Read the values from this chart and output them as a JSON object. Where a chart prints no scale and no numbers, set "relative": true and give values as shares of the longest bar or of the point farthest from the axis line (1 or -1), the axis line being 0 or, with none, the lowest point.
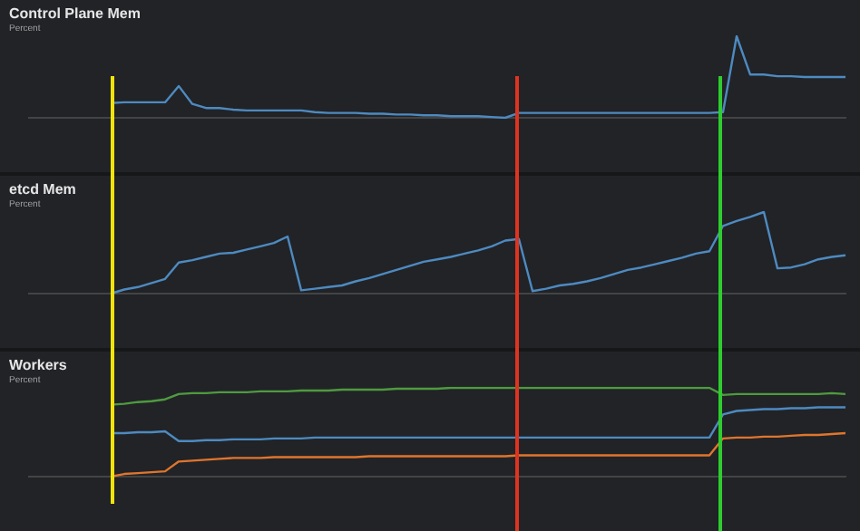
{
  "chart_data": [
    {
      "type": "line",
      "title": "Control Plane Mem",
      "ylabel": "Percent",
      "relative": true,
      "legend": false,
      "marker": "none",
      "line_style": "solid",
      "categories": [
        null,
        null,
        null,
        null,
        null,
        null,
        null,
        null,
        null,
        null,
        null,
        null,
        null,
        null,
        null,
        null,
        null,
        null,
        null,
        null,
        null,
        null,
        null,
        null,
        null,
        null,
        null,
        null,
        null,
        null,
        null,
        null,
        null,
        null,
        null,
        null,
        null,
        null,
        null,
        null,
        null,
        null,
        null,
        null,
        null,
        null,
        null,
        null,
        null,
        null,
        null,
        null,
        null,
        null,
        null,
        null,
        null,
        null,
        null,
        null,
        null
      ],
      "series": [
        {
          "color": "#4e8ac0",
          "values": [
            null,
            null,
            null,
            null,
            null,
            null,
            0.18,
            0.19,
            0.19,
            0.19,
            0.19,
            0.39,
            0.17,
            0.12,
            0.12,
            0.1,
            0.09,
            0.09,
            0.09,
            0.09,
            0.09,
            0.07,
            0.06,
            0.06,
            0.06,
            0.05,
            0.05,
            0.04,
            0.04,
            0.03,
            0.03,
            0.02,
            0.02,
            0.02,
            0.01,
            0,
            0.06,
            0.06,
            0.06,
            0.06,
            0.06,
            0.06,
            0.06,
            0.06,
            0.06,
            0.06,
            0.06,
            0.06,
            0.06,
            0.06,
            0.06,
            0.07,
            1,
            0.53,
            0.53,
            0.51,
            0.51,
            0.5,
            0.5,
            0.5,
            0.5
          ]
        }
      ]
    },
    {
      "type": "line",
      "title": "etcd Mem",
      "ylabel": "Percent",
      "relative": true,
      "legend": false,
      "marker": "none",
      "line_style": "solid",
      "categories": [
        null,
        null,
        null,
        null,
        null,
        null,
        null,
        null,
        null,
        null,
        null,
        null,
        null,
        null,
        null,
        null,
        null,
        null,
        null,
        null,
        null,
        null,
        null,
        null,
        null,
        null,
        null,
        null,
        null,
        null,
        null,
        null,
        null,
        null,
        null,
        null,
        null,
        null,
        null,
        null,
        null,
        null,
        null,
        null,
        null,
        null,
        null,
        null,
        null,
        null,
        null,
        null,
        null,
        null,
        null,
        null,
        null,
        null,
        null,
        null,
        null
      ],
      "series": [
        {
          "color": "#4e8ac0",
          "values": [
            null,
            null,
            null,
            null,
            null,
            null,
            0,
            0.05,
            0.08,
            0.13,
            0.18,
            0.38,
            0.41,
            0.45,
            0.49,
            0.5,
            0.54,
            0.58,
            0.62,
            0.7,
            0.04,
            0.06,
            0.08,
            0.1,
            0.15,
            0.19,
            0.24,
            0.29,
            0.34,
            0.39,
            0.42,
            0.45,
            0.49,
            0.53,
            0.58,
            0.65,
            0.67,
            0.03,
            0.06,
            0.1,
            0.12,
            0.15,
            0.19,
            0.24,
            0.29,
            0.32,
            0.36,
            0.4,
            0.44,
            0.49,
            0.52,
            0.83,
            0.89,
            0.94,
            1,
            0.31,
            0.32,
            0.36,
            0.42,
            0.45,
            0.47
          ]
        }
      ]
    },
    {
      "type": "line",
      "title": "Workers",
      "ylabel": "Percent",
      "relative": true,
      "legend": false,
      "marker": "none",
      "line_style": "solid",
      "categories": [
        null,
        null,
        null,
        null,
        null,
        null,
        null,
        null,
        null,
        null,
        null,
        null,
        null,
        null,
        null,
        null,
        null,
        null,
        null,
        null,
        null,
        null,
        null,
        null,
        null,
        null,
        null,
        null,
        null,
        null,
        null,
        null,
        null,
        null,
        null,
        null,
        null,
        null,
        null,
        null,
        null,
        null,
        null,
        null,
        null,
        null,
        null,
        null,
        null,
        null,
        null,
        null,
        null,
        null,
        null,
        null,
        null,
        null,
        null,
        null,
        null
      ],
      "series": [
        {
          "color": "#4e8ac0",
          "values": [
            null,
            null,
            null,
            null,
            null,
            null,
            0.49,
            0.49,
            0.5,
            0.5,
            0.51,
            0.4,
            0.4,
            0.41,
            0.41,
            0.42,
            0.42,
            0.42,
            0.43,
            0.43,
            0.43,
            0.44,
            0.44,
            0.44,
            0.44,
            0.44,
            0.44,
            0.44,
            0.44,
            0.44,
            0.44,
            0.44,
            0.44,
            0.44,
            0.44,
            0.44,
            0.44,
            0.44,
            0.44,
            0.44,
            0.44,
            0.44,
            0.44,
            0.44,
            0.44,
            0.44,
            0.44,
            0.44,
            0.44,
            0.44,
            0.44,
            0.7,
            0.74,
            0.75,
            0.76,
            0.76,
            0.77,
            0.77,
            0.78,
            0.78,
            0.78
          ]
        },
        {
          "color": "#e0752d",
          "values": [
            null,
            null,
            null,
            null,
            null,
            null,
            0,
            0.03,
            0.04,
            0.05,
            0.06,
            0.17,
            0.18,
            0.19,
            0.2,
            0.21,
            0.21,
            0.21,
            0.22,
            0.22,
            0.22,
            0.22,
            0.22,
            0.22,
            0.22,
            0.23,
            0.23,
            0.23,
            0.23,
            0.23,
            0.23,
            0.23,
            0.23,
            0.23,
            0.23,
            0.23,
            0.24,
            0.24,
            0.24,
            0.24,
            0.24,
            0.24,
            0.24,
            0.24,
            0.24,
            0.24,
            0.24,
            0.24,
            0.24,
            0.24,
            0.24,
            0.43,
            0.44,
            0.44,
            0.45,
            0.45,
            0.46,
            0.47,
            0.47,
            0.48,
            0.49
          ]
        },
        {
          "color": "#4f9a3f",
          "values": [
            null,
            null,
            null,
            null,
            null,
            null,
            0.81,
            0.82,
            0.84,
            0.85,
            0.87,
            0.93,
            0.94,
            0.94,
            0.95,
            0.95,
            0.95,
            0.96,
            0.96,
            0.96,
            0.97,
            0.97,
            0.97,
            0.98,
            0.98,
            0.98,
            0.98,
            0.99,
            0.99,
            0.99,
            0.99,
            1,
            1,
            1,
            1,
            1,
            1,
            1,
            1,
            1,
            1,
            1,
            1,
            1,
            1,
            1,
            1,
            1,
            1,
            1,
            1,
            0.92,
            0.93,
            0.93,
            0.93,
            0.93,
            0.93,
            0.93,
            0.93,
            0.94,
            0.93
          ]
        }
      ]
    }
  ]
}
